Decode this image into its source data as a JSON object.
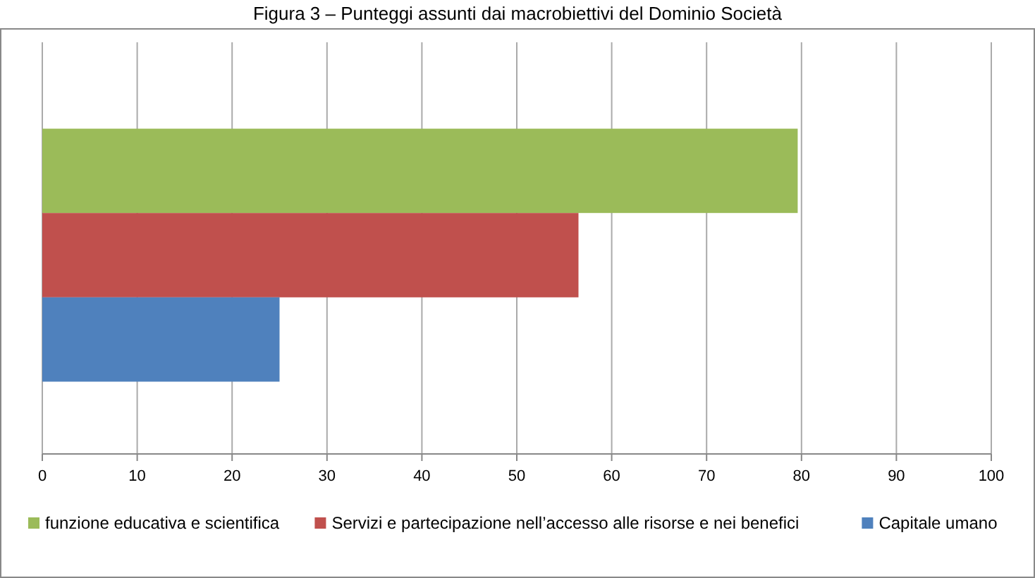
{
  "chart_data": {
    "type": "bar",
    "title": "Figura 3 – Punteggi assunti dai macrobiettivi del Dominio Società",
    "orientation": "horizontal",
    "categories": [
      null
    ],
    "series": [
      {
        "name": "funzione educativa e scientifica",
        "color": "#9bbb59",
        "values": [
          79.6
        ]
      },
      {
        "name": "Servizi e partecipazione nell’accesso alle risorse e nei benefici",
        "color": "#c0504d",
        "values": [
          56.5
        ]
      },
      {
        "name": "Capitale umano",
        "color": "#4f81bd",
        "values": [
          25
        ]
      }
    ],
    "xlim": [
      0,
      100
    ],
    "xticks": [
      0,
      10,
      20,
      30,
      40,
      50,
      60,
      70,
      80,
      90,
      100
    ],
    "grid": "x",
    "legend": "bottom"
  }
}
